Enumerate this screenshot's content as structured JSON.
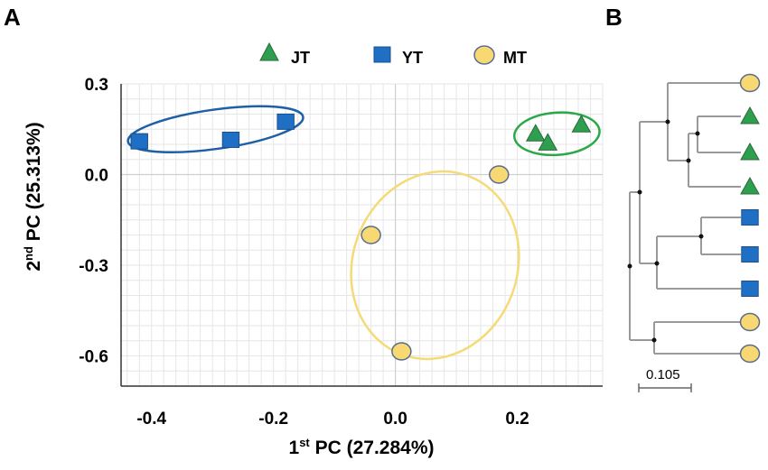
{
  "chart_data": [
    {
      "panel": "A",
      "type": "scatter",
      "xlabel": {
        "base": "1",
        "sup": "st",
        "rest": " PC (27.284%)"
      },
      "ylabel": {
        "base": "2",
        "sup": "nd",
        "rest": " PC (25.313%)"
      },
      "xlim": [
        -0.45,
        0.34
      ],
      "ylim": [
        -0.7,
        0.3
      ],
      "x_ticks": [
        -0.4,
        -0.2,
        0.0,
        0.2
      ],
      "x_tick_labels": [
        "-0.4",
        "-0.2",
        "0.0",
        "0.2"
      ],
      "y_ticks": [
        0.3,
        0.0,
        -0.3,
        -0.6
      ],
      "y_tick_labels": [
        "0.3",
        "0.0",
        "-0.3",
        "-0.6"
      ],
      "grid": true,
      "legend_position": "top-center",
      "series": [
        {
          "name": "JT",
          "marker": "triangle",
          "color": "#2e9e4f",
          "edge": "#2b6a3a",
          "points": [
            [
              0.23,
              0.135
            ],
            [
              0.25,
              0.105
            ],
            [
              0.305,
              0.165
            ]
          ]
        },
        {
          "name": "YT",
          "marker": "square",
          "color": "#1f6fc4",
          "edge": "#1b4f8a",
          "points": [
            [
              -0.42,
              0.11
            ],
            [
              -0.27,
              0.115
            ],
            [
              -0.18,
              0.175
            ]
          ]
        },
        {
          "name": "MT",
          "marker": "circle",
          "color": "#f8d873",
          "edge": "#5a6e8c",
          "points": [
            [
              0.17,
              0.0
            ],
            [
              -0.04,
              -0.2
            ],
            [
              0.01,
              -0.585
            ]
          ]
        }
      ],
      "ellipses": [
        {
          "group": "YT",
          "color": "#1f5fa6",
          "cx": -0.295,
          "cy": 0.15,
          "rx": 0.145,
          "ry": 0.065,
          "angle_deg": -8
        },
        {
          "group": "JT",
          "color": "#2aa84a",
          "cx": 0.265,
          "cy": 0.135,
          "rx": 0.07,
          "ry": 0.07,
          "angle_deg": -4
        },
        {
          "group": "MT",
          "color": "#f5da78",
          "cx": 0.065,
          "cy": -0.3,
          "rx": 0.135,
          "ry": 0.315,
          "angle_deg": 20
        }
      ]
    },
    {
      "panel": "B",
      "type": "dendrogram",
      "leaves": [
        "MT",
        "JT",
        "JT",
        "JT",
        "YT",
        "YT",
        "YT",
        "MT",
        "MT"
      ],
      "scale_bar_label": "0.105",
      "scale_bar_value": 0.105
    }
  ],
  "colors": {
    "JT": "#2e9e4f",
    "YT": "#1f6fc4",
    "MT": "#f8d873",
    "grid": "#e4e4e4",
    "branch": "#9a9a9a"
  },
  "legend": [
    {
      "label": "JT",
      "marker": "triangle"
    },
    {
      "label": "YT",
      "marker": "square"
    },
    {
      "label": "MT",
      "marker": "circle"
    }
  ],
  "panel_labels": {
    "a": "A",
    "b": "B"
  }
}
